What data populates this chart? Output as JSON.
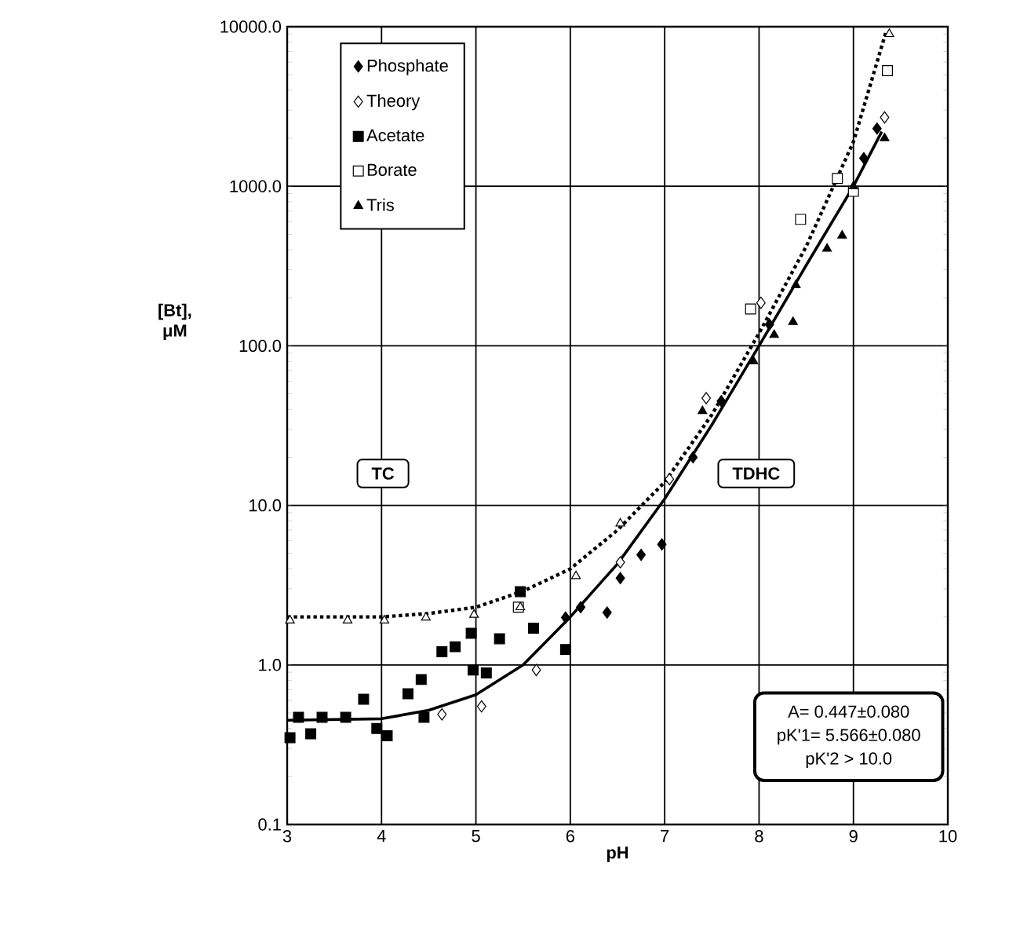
{
  "chart_data": {
    "type": "scatter",
    "xlabel": "pH",
    "ylabel": "[Bt], μM",
    "xlim": [
      3,
      10
    ],
    "xticks": [
      3,
      4,
      5,
      6,
      7,
      8,
      9,
      10
    ],
    "ylim": [
      0.1,
      10000
    ],
    "yticks": [
      0.1,
      {
        "value": 1,
        "label": "1.0"
      },
      {
        "value": 10,
        "label": "10.0"
      },
      {
        "value": 100,
        "label": "100.0"
      },
      {
        "value": 1000,
        "label": "1000.0"
      },
      {
        "value": 10000,
        "label": "10000.0"
      }
    ],
    "log": "y",
    "grid": true,
    "legend": "top left",
    "annotations": [
      "TC",
      "TDHC",
      "A= 0.447±0.080",
      "pK'1= 5.566±0.080",
      "pK'2 > 10.0"
    ],
    "series": [
      {
        "name": "Phosphate",
        "color": "#000000",
        "marker": "diamond",
        "x": [
          5.95,
          6.11,
          6.39,
          6.53,
          6.75,
          6.97,
          7.3,
          7.6,
          8.11,
          9.11,
          9.25
        ],
        "values": [
          1.98,
          2.3,
          2.13,
          3.5,
          4.9,
          5.7,
          20,
          45,
          136,
          1500,
          2300
        ]
      },
      {
        "name": "Theory",
        "color": "#ffffff",
        "marker": "diamond",
        "x": [
          4.64,
          5.06,
          5.64,
          6.53,
          7.05,
          7.44,
          8.02,
          9.33
        ],
        "values": [
          0.49,
          0.55,
          0.93,
          4.4,
          14.6,
          47,
          186,
          2700
        ]
      },
      {
        "name": "Acetate",
        "color": "#000000",
        "marker": "square",
        "x": [
          3.03,
          3.12,
          3.25,
          3.37,
          3.62,
          3.81,
          3.95,
          4.06,
          4.28,
          4.42,
          4.45,
          4.64,
          4.78,
          4.95,
          4.97,
          5.11,
          5.25,
          5.47,
          5.61,
          5.95
        ],
        "values": [
          0.35,
          0.47,
          0.37,
          0.47,
          0.47,
          0.61,
          0.4,
          0.36,
          0.66,
          0.81,
          0.47,
          1.21,
          1.3,
          1.58,
          0.93,
          0.89,
          1.46,
          2.88,
          1.7,
          1.25
        ]
      },
      {
        "name": "Borate",
        "color": "#ffffff",
        "marker": "square",
        "x": [
          5.45,
          7.91,
          8.44,
          8.83,
          9.0,
          9.36
        ],
        "values": [
          2.3,
          170,
          620,
          1120,
          930,
          5300
        ]
      },
      {
        "name": "Tris",
        "color": "#000000",
        "marker": "triangle",
        "x": [
          7.4,
          7.94,
          8.16,
          8.36,
          8.39,
          8.72,
          8.88,
          9.0,
          9.33
        ],
        "values": [
          39,
          80,
          117,
          141,
          240,
          406,
          491,
          1000,
          2000
        ]
      },
      {
        "color": "#ffffff",
        "marker": "triangle",
        "x": [
          3.03,
          3.64,
          4.03,
          4.47,
          4.98,
          5.47,
          6.06,
          6.53,
          9.38
        ],
        "values": [
          1.9,
          1.9,
          1.9,
          1.98,
          2.06,
          2.3,
          3.6,
          7.7,
          9000
        ]
      },
      {
        "type": "line",
        "color": "#000000",
        "marker": "none",
        "line_style": "dotted",
        "x": [
          3,
          4,
          4.5,
          5,
          5.5,
          6,
          6.5,
          7,
          7.5,
          8,
          8.5,
          9,
          9.35
        ],
        "values": [
          2.0,
          2.0,
          2.1,
          2.3,
          2.9,
          4,
          7,
          14,
          37,
          120,
          420,
          1900,
          9500
        ]
      },
      {
        "type": "line",
        "color": "#000000",
        "marker": "none",
        "line_style": "solid",
        "x": [
          3,
          4,
          4.5,
          5,
          5.5,
          6,
          6.5,
          7,
          7.5,
          8,
          8.5,
          9,
          9.3
        ],
        "values": [
          0.45,
          0.46,
          0.52,
          0.65,
          1.0,
          2.0,
          4.3,
          11,
          32,
          100,
          320,
          1000,
          2200
        ]
      }
    ]
  }
}
